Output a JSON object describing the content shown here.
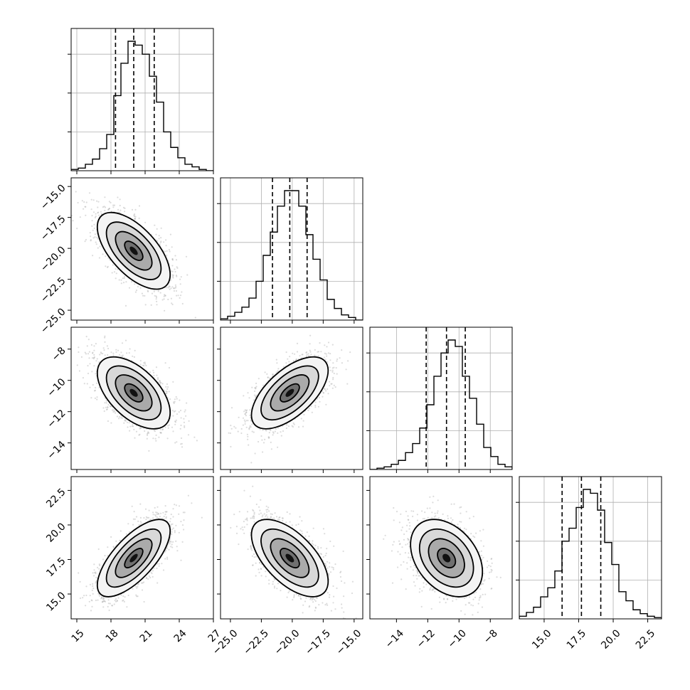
{
  "chart_data": {
    "type": "corner",
    "grid_lines": true,
    "parameters": [
      {
        "mean": 20.0,
        "std": 1.6,
        "range": [
          14.5,
          27
        ],
        "quantiles": [
          18.4,
          20.0,
          21.8
        ],
        "ticks": [
          15,
          18,
          21,
          24,
          27
        ],
        "tick_labels": [
          "15",
          "18",
          "21",
          "24",
          "27"
        ],
        "hist": [
          0.01,
          0.02,
          0.05,
          0.09,
          0.17,
          0.28,
          0.58,
          0.83,
          1.0,
          0.97,
          0.9,
          0.73,
          0.53,
          0.3,
          0.18,
          0.1,
          0.05,
          0.03,
          0.01,
          0.0
        ]
      },
      {
        "mean": -20.2,
        "std": 1.55,
        "range": [
          -25.8,
          -14.3
        ],
        "quantiles": [
          -21.6,
          -20.2,
          -18.8
        ],
        "ticks": [
          -25.0,
          -22.5,
          -20.0,
          -17.5,
          -15.0
        ],
        "tick_labels": [
          "−25.0",
          "−22.5",
          "−20.0",
          "−17.5",
          "−15.0"
        ],
        "hist": [
          0.01,
          0.03,
          0.06,
          0.1,
          0.17,
          0.3,
          0.5,
          0.68,
          0.88,
          1.0,
          1.0,
          0.88,
          0.66,
          0.47,
          0.31,
          0.16,
          0.09,
          0.04,
          0.02,
          0.0
        ]
      },
      {
        "mean": -10.8,
        "std": 1.15,
        "range": [
          -15.7,
          -6.6
        ],
        "quantiles": [
          -12.1,
          -10.8,
          -9.6
        ],
        "ticks": [
          -14,
          -12,
          -10,
          -8
        ],
        "tick_labels": [
          "−14",
          "−12",
          "−10",
          "−8"
        ],
        "hist": [
          0.0,
          0.01,
          0.02,
          0.04,
          0.07,
          0.13,
          0.2,
          0.32,
          0.5,
          0.72,
          0.9,
          1.0,
          0.95,
          0.72,
          0.55,
          0.35,
          0.17,
          0.1,
          0.04,
          0.02
        ]
      },
      {
        "mean": 17.6,
        "std": 1.4,
        "range": [
          13.2,
          23.5
        ],
        "quantiles": [
          16.3,
          17.7,
          19.1
        ],
        "ticks": [
          15.0,
          17.5,
          20.0,
          22.5
        ],
        "tick_labels": [
          "15.0",
          "17.5",
          "20.0",
          "22.5"
        ],
        "hist": [
          0.02,
          0.05,
          0.09,
          0.17,
          0.24,
          0.37,
          0.6,
          0.7,
          0.86,
          1.0,
          0.97,
          0.84,
          0.59,
          0.42,
          0.21,
          0.14,
          0.07,
          0.04,
          0.02,
          0.01
        ]
      }
    ],
    "correlations": {
      "1-0": -0.62,
      "2-0": -0.55,
      "2-1": 0.62,
      "3-0": 0.7,
      "3-1": -0.6,
      "3-2": -0.35
    },
    "contour_levels_sigma": [
      0.5,
      1.0,
      1.5,
      2.0
    ]
  }
}
